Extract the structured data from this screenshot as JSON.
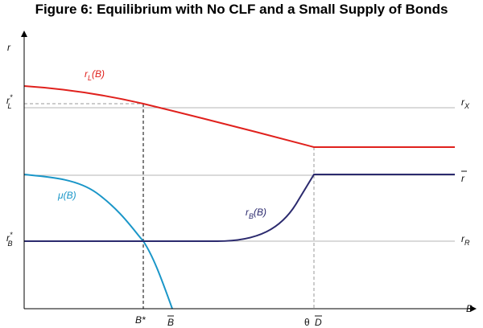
{
  "title": "Figure 6: Equilibrium with No CLF and a Small Supply of Bonds",
  "axes": {
    "y": "r",
    "x": "B"
  },
  "curves": {
    "rL": {
      "name": "r",
      "sub": "L",
      "arg": "(B)",
      "color": "#e0211d"
    },
    "mu": {
      "name": "μ",
      "arg": "(B)",
      "color": "#1a96c8"
    },
    "rB": {
      "name": "r",
      "sub": "B",
      "arg": "(B)",
      "color": "#2b2a6e"
    }
  },
  "levels": {
    "rX": {
      "name": "r",
      "sub": "X"
    },
    "rbar": {
      "name": "r"
    },
    "rR": {
      "name": "r",
      "sub": "R"
    },
    "rLstar": {
      "name": "r",
      "sup": "*",
      "sub": "L"
    },
    "rBstar": {
      "name": "r",
      "sup": "*",
      "sub": "B"
    }
  },
  "xticks": {
    "bstar": "B*",
    "bbar": "B",
    "theta": "θ",
    "dbar": "D"
  },
  "colors": {
    "ref_line": "#b5b5b5",
    "dash": "#999999",
    "axis": "#000000"
  }
}
